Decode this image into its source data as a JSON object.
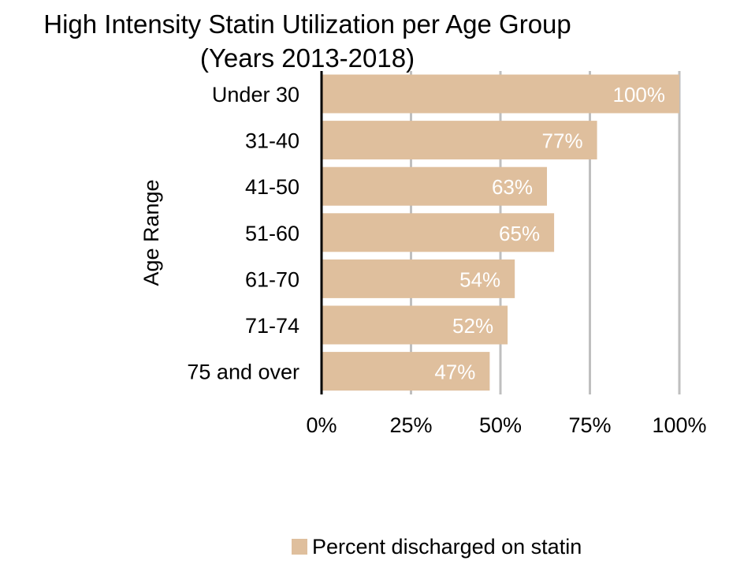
{
  "chart_data": {
    "type": "bar",
    "orientation": "horizontal",
    "title": "High Intensity Statin Utilization per Age Group",
    "subtitle": "(Years 2013-2018)",
    "xlabel": "",
    "ylabel": "Age Range",
    "xlim": [
      0,
      100
    ],
    "x_ticks": [
      0,
      25,
      50,
      75,
      100
    ],
    "x_tick_labels": [
      "0%",
      "25%",
      "50%",
      "75%",
      "100%"
    ],
    "grid": true,
    "legend_position": "bottom",
    "bar_color": "#DFBF9D",
    "data_label_color": "#FFFFFF",
    "categories": [
      "Under 30",
      "31-40",
      "41-50",
      "51-60",
      "61-70",
      "71-74",
      "75 and over"
    ],
    "series": [
      {
        "name": "Percent discharged on statin",
        "values": [
          100,
          77,
          63,
          65,
          54,
          52,
          47
        ],
        "data_labels": [
          "100%",
          "77%",
          "63%",
          "65%",
          "54%",
          "52%",
          "47%"
        ]
      }
    ]
  }
}
